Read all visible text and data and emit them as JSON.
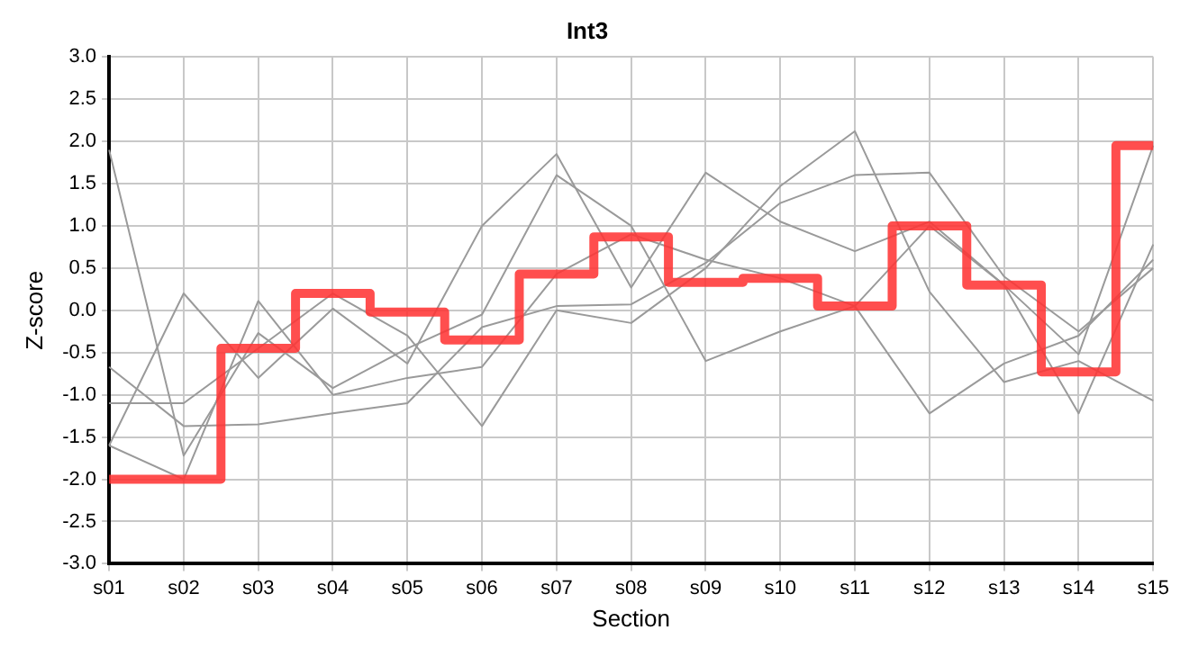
{
  "chart_data": {
    "type": "line",
    "title": "Int3",
    "xlabel": "Section",
    "ylabel": "Z-score",
    "categories": [
      "s01",
      "s02",
      "s03",
      "s04",
      "s05",
      "s06",
      "s07",
      "s08",
      "s09",
      "s10",
      "s11",
      "s12",
      "s13",
      "s14",
      "s15"
    ],
    "series": [
      {
        "color": "#9a9a9a",
        "values": [
          1.9,
          -1.72,
          -0.27,
          -0.92,
          -0.45,
          -0.05,
          1.6,
          1.0,
          -0.6,
          -0.25,
          0.05,
          1.0,
          0.3,
          -1.22,
          0.78
        ]
      },
      {
        "color": "#9a9a9a",
        "values": [
          -1.6,
          0.2,
          -0.8,
          0.02,
          -0.63,
          1.0,
          1.85,
          0.27,
          1.63,
          1.05,
          0.7,
          1.05,
          0.3,
          -0.52,
          1.95
        ]
      },
      {
        "color": "#9a9a9a",
        "values": [
          -0.67,
          -1.37,
          -1.35,
          -1.22,
          -1.1,
          -0.2,
          0.05,
          0.07,
          0.56,
          1.27,
          1.6,
          1.63,
          0.4,
          -0.25,
          0.5
        ]
      },
      {
        "color": "#9a9a9a",
        "values": [
          -1.1,
          -1.1,
          -0.45,
          0.2,
          -0.3,
          -1.37,
          0,
          -0.15,
          0.5,
          1.47,
          2.12,
          0.22,
          -0.85,
          -0.6,
          -1.07
        ]
      },
      {
        "color": "#9a9a9a",
        "values": [
          -1.6,
          -2.0,
          0.11,
          -1.0,
          -0.8,
          -0.67,
          0.43,
          0.9,
          0.6,
          0.38,
          0.05,
          -1.22,
          -0.63,
          -0.3,
          0.6
        ]
      },
      {
        "type": "step",
        "color": "#ff3333",
        "values": [
          -2,
          -2,
          -0.45,
          0.2,
          -0.02,
          -0.35,
          0.43,
          0.87,
          0.33,
          0.38,
          0.05,
          1.0,
          0.3,
          -0.73,
          1.95
        ]
      }
    ],
    "ylim": [
      -3,
      3
    ],
    "yticks": [
      {
        "value": -3,
        "label": "-3.0"
      },
      {
        "value": -2.5,
        "label": "-2.5"
      },
      {
        "value": -2,
        "label": "-2.0"
      },
      {
        "value": -1.5,
        "label": "-1.5"
      },
      {
        "value": -1,
        "label": "-1.0"
      },
      {
        "value": -0.5,
        "label": "-0.5"
      },
      {
        "value": 0,
        "label": "0.0"
      },
      {
        "value": 0.5,
        "label": "0.5"
      },
      {
        "value": 1,
        "label": "1.0"
      },
      {
        "value": 1.5,
        "label": "1.5"
      },
      {
        "value": 2,
        "label": "2.0"
      },
      {
        "value": 2.5,
        "label": "2.5"
      },
      {
        "value": 3,
        "label": "3.0"
      }
    ],
    "grid": true,
    "legend": false,
    "marker": "none",
    "line_style": "solid"
  }
}
